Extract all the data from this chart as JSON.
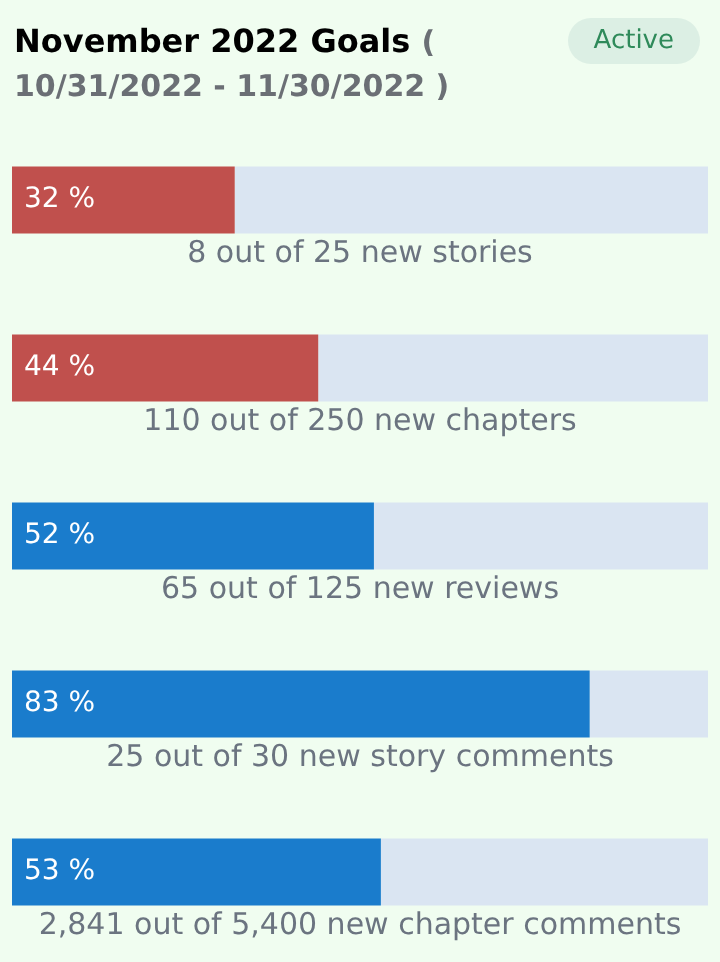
{
  "chart_data": {
    "type": "bar",
    "orientation": "horizontal",
    "stacked": true,
    "title": "November 2022 Goals",
    "subtitle": "( 10/31/2022 - 11/30/2022 )",
    "annotations": [
      "Active"
    ],
    "categories": [
      "8 out of 25 new stories",
      "110 out of 250 new chapters",
      "65 out of 125 new reviews",
      "25 out of 30 new story comments",
      "2,841 out of 5,400 new chapter comments"
    ],
    "xlim": [
      0,
      100
    ],
    "series": [
      {
        "values": [
          32,
          44,
          52,
          83,
          53
        ],
        "colors": [
          "#c0504d",
          "#c0504d",
          "#1a7ccc",
          "#1a7ccc",
          "#1a7ccc"
        ],
        "value_labels": [
          "32 %",
          "44 %",
          "52 %",
          "83 %",
          "53 %"
        ]
      },
      {
        "values": [
          68,
          56,
          48,
          17,
          47
        ],
        "color": "#dae5f2"
      }
    ]
  }
}
